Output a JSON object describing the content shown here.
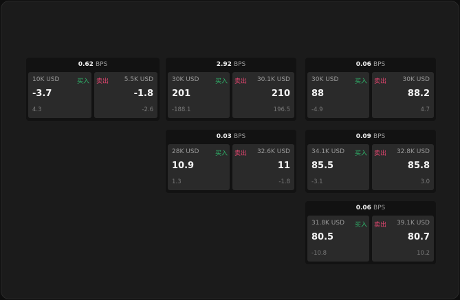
{
  "unit": "BPS",
  "buy_label": "买入",
  "sell_label": "卖出",
  "colors": {
    "buy": "#2fb36a",
    "sell": "#e0456f"
  },
  "widgets": [
    {
      "spread": "0.62",
      "buy": {
        "qty": "10K USD",
        "price": "-3.7",
        "change": "4.3"
      },
      "sell": {
        "qty": "5.5K USD",
        "price": "-1.8",
        "change": "-2.6"
      }
    },
    {
      "spread": "2.92",
      "buy": {
        "qty": "30K USD",
        "price": "201",
        "change": "-188.1"
      },
      "sell": {
        "qty": "30.1K USD",
        "price": "210",
        "change": "196.5"
      }
    },
    {
      "spread": "0.06",
      "buy": {
        "qty": "30K USD",
        "price": "88",
        "change": "-4.9"
      },
      "sell": {
        "qty": "30K USD",
        "price": "88.2",
        "change": "4.7"
      }
    },
    {
      "spread": "0.03",
      "buy": {
        "qty": "28K USD",
        "price": "10.9",
        "change": "1.3"
      },
      "sell": {
        "qty": "32.6K USD",
        "price": "11",
        "change": "-1.8"
      }
    },
    {
      "spread": "0.09",
      "buy": {
        "qty": "34.1K USD",
        "price": "85.5",
        "change": "-3.1"
      },
      "sell": {
        "qty": "32.8K USD",
        "price": "85.8",
        "change": "3.0"
      }
    },
    {
      "spread": "0.06",
      "buy": {
        "qty": "31.8K USD",
        "price": "80.5",
        "change": "-10.8"
      },
      "sell": {
        "qty": "39.1K USD",
        "price": "80.7",
        "change": "10.2"
      }
    }
  ]
}
